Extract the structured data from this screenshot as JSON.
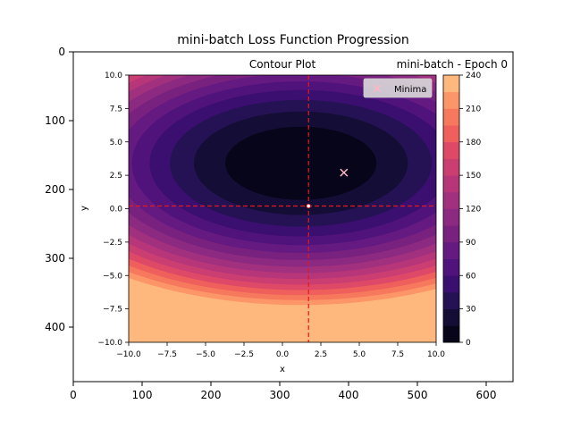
{
  "figure": {
    "title": "mini-batch Loss Function Progression",
    "outer_axes": {
      "x_ticks": [
        "0",
        "100",
        "200",
        "300",
        "400",
        "500",
        "600"
      ],
      "y_ticks": [
        "0",
        "100",
        "200",
        "300",
        "400"
      ]
    }
  },
  "chart_data": {
    "type": "contour",
    "title": "Contour Plot",
    "subtitle": "mini-batch - Epoch 0",
    "xlabel": "x",
    "ylabel": "y",
    "xlim": [
      -10,
      10
    ],
    "ylim": [
      -10,
      10
    ],
    "x_ticks": [
      "−10.0",
      "−7.5",
      "−5.0",
      "−2.5",
      "0.0",
      "2.5",
      "5.0",
      "7.5",
      "10.0"
    ],
    "y_ticks": [
      "−10.0",
      "−7.5",
      "−5.0",
      "−2.5",
      "0.0",
      "2.5",
      "5.0",
      "7.5",
      "10.0"
    ],
    "colormap": "magma",
    "contour_levels": [
      0,
      15,
      30,
      45,
      60,
      75,
      90,
      105,
      120,
      135,
      150,
      165,
      180,
      195,
      210,
      225,
      240
    ],
    "colorbar": {
      "min": 0,
      "max": 240,
      "ticks": [
        "0",
        "30",
        "60",
        "90",
        "120",
        "150",
        "180",
        "210",
        "240"
      ]
    },
    "legend": {
      "position": "top-right",
      "entries": [
        "Minima"
      ]
    },
    "series": [
      {
        "name": "Minima",
        "marker": "x",
        "color": "#ffb6c1",
        "x": 4,
        "y": 2.7
      }
    ],
    "current_point": {
      "x": 1.7,
      "y": 0.2,
      "color": "#ffffff"
    },
    "crosshair": {
      "x": 1.7,
      "y": 0.2,
      "color": "#e41a1c",
      "style": "dashed"
    },
    "surface_center": {
      "x": 1.2,
      "y": 3.4
    }
  }
}
